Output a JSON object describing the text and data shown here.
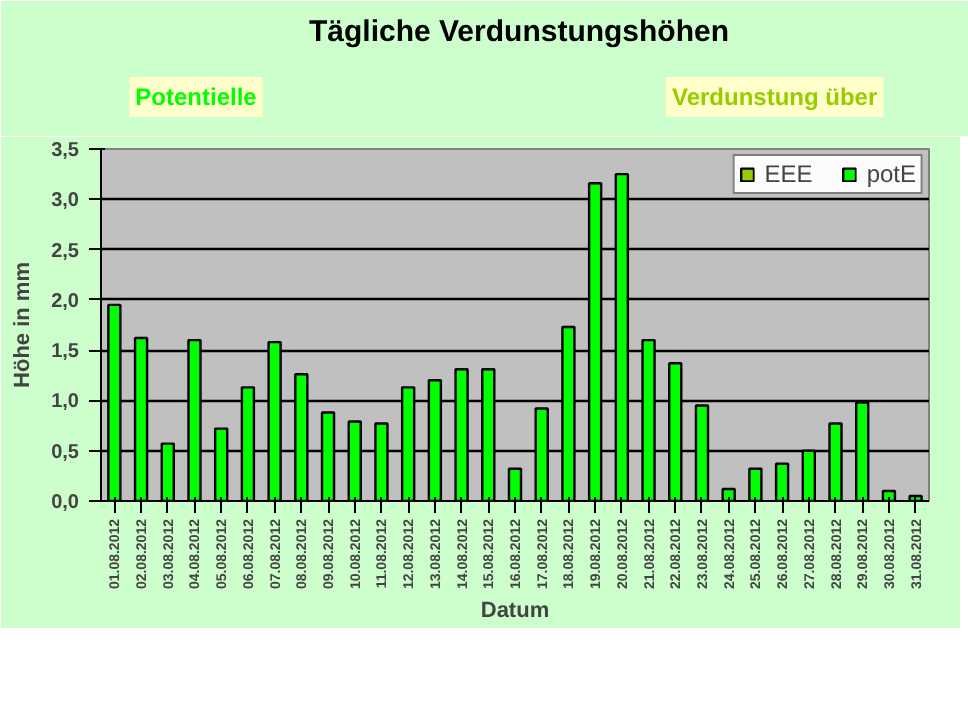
{
  "chart_data": {
    "type": "bar",
    "title": "Tägliche Verdunstungshöhen",
    "xlabel": "Datum",
    "ylabel": "Höhe in mm",
    "annotations": [
      "Potentielle",
      "Verdunstung über"
    ],
    "categories": [
      "01.08.2012",
      "02.08.2012",
      "03.08.2012",
      "04.08.2012",
      "05.08.2012",
      "06.08.2012",
      "07.08.2012",
      "08.08.2012",
      "09.08.2012",
      "10.08.2012",
      "11.08.2012",
      "12.08.2012",
      "13.08.2012",
      "14.08.2012",
      "15.08.2012",
      "16.08.2012",
      "17.08.2012",
      "18.08.2012",
      "19.08.2012",
      "20.08.2012",
      "21.08.2012",
      "22.08.2012",
      "23.08.2012",
      "24.08.2012",
      "25.08.2012",
      "26.08.2012",
      "27.08.2012",
      "28.08.2012",
      "29.08.2012",
      "30.08.2012",
      "31.08.2012"
    ],
    "series": [
      {
        "name": "EEE",
        "color": "#99cc00",
        "values": [
          null,
          null,
          null,
          null,
          null,
          null,
          null,
          null,
          null,
          null,
          null,
          null,
          null,
          null,
          null,
          null,
          null,
          null,
          null,
          null,
          null,
          null,
          null,
          null,
          null,
          null,
          null,
          null,
          null,
          null,
          null
        ]
      },
      {
        "name": "potE",
        "color": "#00ff00",
        "values": [
          1.95,
          1.62,
          0.57,
          1.6,
          0.72,
          1.13,
          1.58,
          1.26,
          0.88,
          0.79,
          0.77,
          1.13,
          1.2,
          1.31,
          1.31,
          0.32,
          0.92,
          1.73,
          3.16,
          3.25,
          1.6,
          1.37,
          0.95,
          0.12,
          0.32,
          0.37,
          0.5,
          0.77,
          0.98,
          0.1,
          0.05
        ]
      }
    ],
    "ylim": [
      0,
      3.5
    ],
    "yticks": [
      {
        "value": 0,
        "label": "0,0"
      },
      {
        "value": 0.5,
        "label": "0,5"
      },
      {
        "value": 1,
        "label": "1,0"
      },
      {
        "value": 1.5,
        "label": "1,5"
      },
      {
        "value": 2,
        "label": "2,0"
      },
      {
        "value": 2.5,
        "label": "2,5"
      },
      {
        "value": 3,
        "label": "3,0"
      },
      {
        "value": 3.5,
        "label": "3,5"
      }
    ],
    "grid": "y",
    "legend": "top right"
  }
}
